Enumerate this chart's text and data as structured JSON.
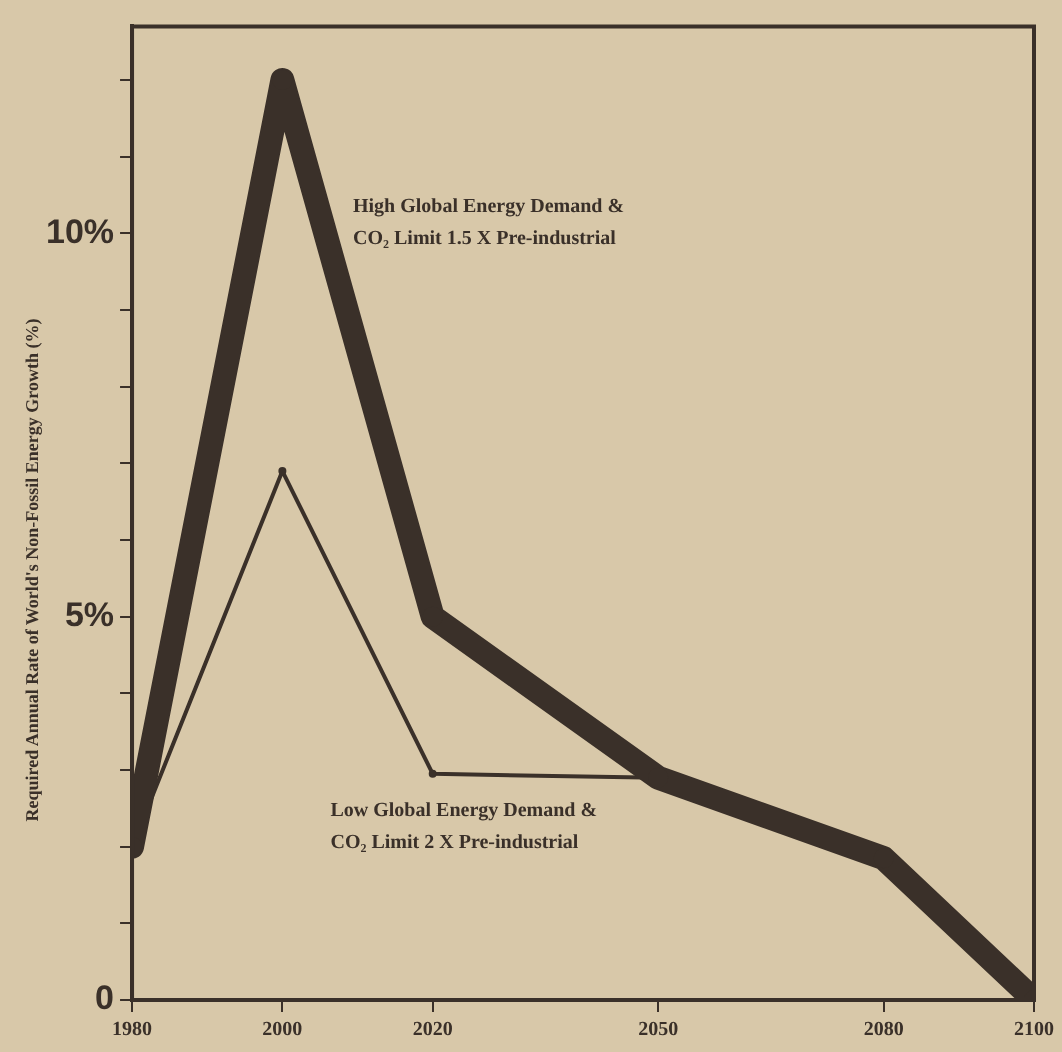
{
  "chart_data": {
    "type": "line",
    "ylabel": "Required Annual Rate of World's Non-Fossil Energy Growth (%)",
    "x": [
      1980,
      2000,
      2020,
      2050,
      2080,
      2100
    ],
    "series": [
      {
        "name": "High Global Energy Demand & CO₂ Limit 1.5 X Pre-industrial",
        "color": "#3a3029",
        "values": [
          2,
          12,
          5,
          2.9,
          1.85,
          0
        ]
      },
      {
        "name": "Low Global Energy Demand & CO₂ Limit 2 X Pre-industrial",
        "color": "#3a3029",
        "x": [
          1980,
          2000,
          2020,
          2050
        ],
        "values": [
          2,
          6.9,
          2.95,
          2.9
        ]
      }
    ],
    "xlim": [
      1980,
      2100
    ],
    "xticks": [
      1980,
      2000,
      2020,
      2050,
      2080,
      2100
    ],
    "ylim": [
      0,
      12.7
    ],
    "yticks": [
      {
        "value": 0,
        "label": "0"
      },
      {
        "value": 1,
        "label": null
      },
      {
        "value": 2,
        "label": null
      },
      {
        "value": 3,
        "label": null
      },
      {
        "value": 4,
        "label": null
      },
      {
        "value": 5,
        "label": "5%"
      },
      {
        "value": 6,
        "label": null
      },
      {
        "value": 7,
        "label": null
      },
      {
        "value": 8,
        "label": null
      },
      {
        "value": 9,
        "label": null
      },
      {
        "value": 10,
        "label": "10%"
      },
      {
        "value": 11,
        "label": null
      },
      {
        "value": 12,
        "label": null
      }
    ],
    "grid": false,
    "legend": false,
    "marker": "circle",
    "line_style": "solid"
  }
}
